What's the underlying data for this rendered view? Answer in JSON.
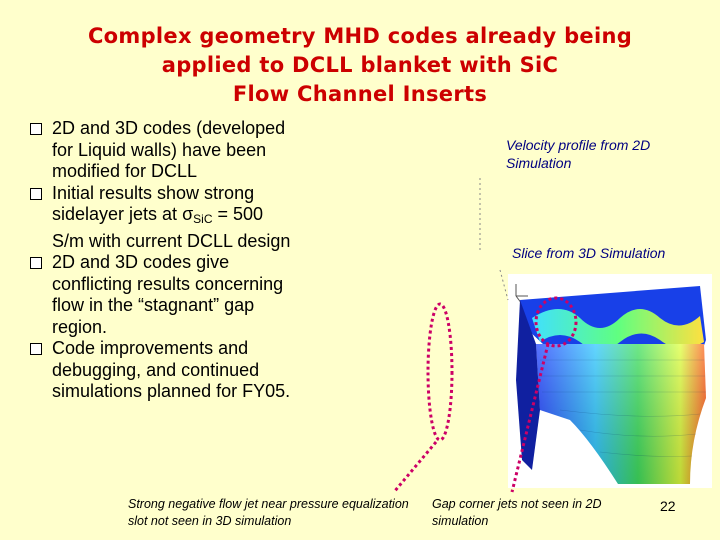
{
  "slide": {
    "title_lines": [
      "Complex geometry MHD codes already being",
      "applied to DCLL blanket with SiC",
      "Flow Channel Inserts"
    ],
    "bullets": [
      {
        "pre": "2D and 3D codes (developed for Liquid walls) have been modified for DCLL"
      },
      {
        "pre": "Initial results show strong sidelayer jets at ",
        "symbol": "σ",
        "sub": "SiC",
        "post": " = 500 S/m with current DCLL design"
      },
      {
        "pre": "2D and 3D codes give conflicting  results concerning flow in the “stagnant” gap region."
      },
      {
        "pre": "Code improvements and debugging, and continued simulations planned for FY05."
      }
    ],
    "captions": {
      "velocity_profile": "Velocity profile from 2D Simulation",
      "slice_3d": "Slice from 3D Simulation",
      "negative_jet": "Strong negative flow jet near pressure equalization slot not seen in 3D simulation",
      "gap_corner": "Gap corner jets not seen in 2D simulation"
    },
    "page_number": "22",
    "colors": {
      "background": "#ffffcc",
      "title": "#cc0000",
      "caption": "#000080",
      "highlight": "#cc0066"
    }
  }
}
